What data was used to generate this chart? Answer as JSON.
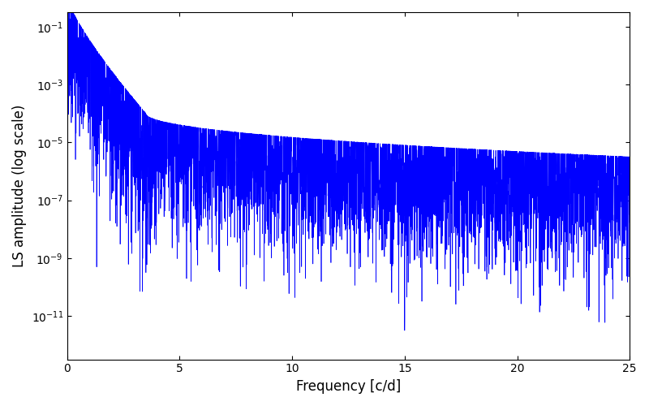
{
  "title": "",
  "xlabel": "Frequency [c/d]",
  "ylabel": "LS amplitude (log scale)",
  "xlim": [
    0,
    25
  ],
  "ylim_log": [
    -12.5,
    -0.5
  ],
  "line_color": "#0000ff",
  "background_color": "#ffffff",
  "figsize": [
    8.0,
    5.0
  ],
  "dpi": 100,
  "freq_max": 25.0,
  "n_points": 5000,
  "seed": 42
}
